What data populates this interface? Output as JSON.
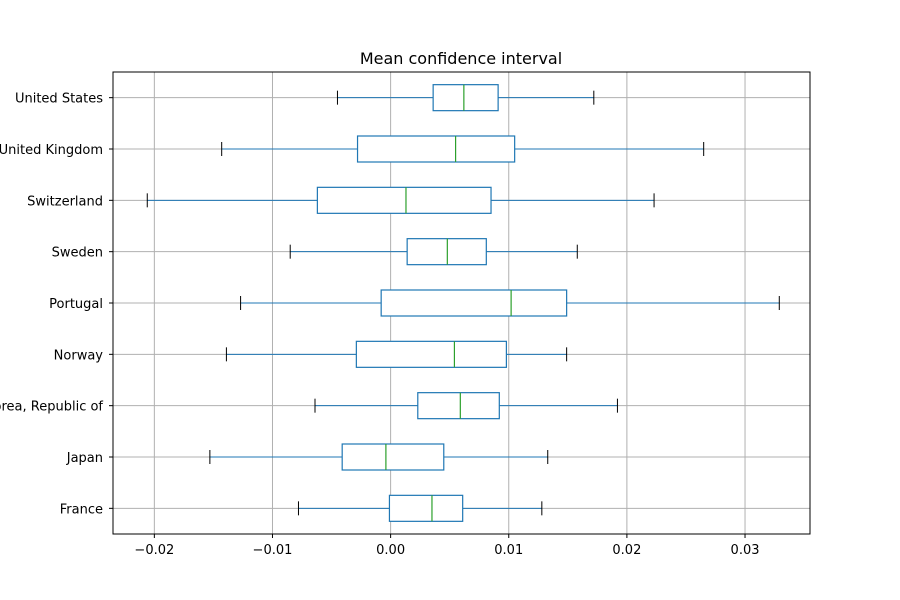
{
  "chart_data": {
    "type": "boxplot",
    "orientation": "horizontal",
    "title": "Mean confidence interval",
    "xlabel": "",
    "ylabel": "",
    "xlim": [
      -0.0235,
      0.0355
    ],
    "xticks": [
      -0.02,
      -0.01,
      0.0,
      0.01,
      0.02,
      0.03
    ],
    "xtick_labels": [
      "−0.02",
      "−0.01",
      "0.00",
      "0.01",
      "0.02",
      "0.03"
    ],
    "grid": true,
    "categories": [
      "United States",
      "United Kingdom",
      "Switzerland",
      "Sweden",
      "Portugal",
      "Norway",
      "Korea, Republic of",
      "Japan",
      "France"
    ],
    "boxes": [
      {
        "label": "United States",
        "whisker_low": -0.0045,
        "q1": 0.0036,
        "median": 0.0062,
        "q3": 0.0091,
        "whisker_high": 0.0172
      },
      {
        "label": "United Kingdom",
        "whisker_low": -0.0143,
        "q1": -0.0028,
        "median": 0.0055,
        "q3": 0.0105,
        "whisker_high": 0.0265
      },
      {
        "label": "Switzerland",
        "whisker_low": -0.0206,
        "q1": -0.0062,
        "median": 0.0013,
        "q3": 0.0085,
        "whisker_high": 0.0223
      },
      {
        "label": "Sweden",
        "whisker_low": -0.0085,
        "q1": 0.0014,
        "median": 0.0048,
        "q3": 0.0081,
        "whisker_high": 0.0158
      },
      {
        "label": "Portugal",
        "whisker_low": -0.0127,
        "q1": -0.0008,
        "median": 0.0102,
        "q3": 0.0149,
        "whisker_high": 0.0329
      },
      {
        "label": "Norway",
        "whisker_low": -0.0139,
        "q1": -0.0029,
        "median": 0.0054,
        "q3": 0.0098,
        "whisker_high": 0.0149
      },
      {
        "label": "Korea, Republic of",
        "whisker_low": -0.0064,
        "q1": 0.0023,
        "median": 0.0059,
        "q3": 0.0092,
        "whisker_high": 0.0192
      },
      {
        "label": "Japan",
        "whisker_low": -0.0153,
        "q1": -0.0041,
        "median": -0.0004,
        "q3": 0.0045,
        "whisker_high": 0.0133
      },
      {
        "label": "France",
        "whisker_low": -0.0078,
        "q1": -0.0001,
        "median": 0.0035,
        "q3": 0.0061,
        "whisker_high": 0.0128
      }
    ],
    "colors": {
      "box": "#1f77b4",
      "median": "#2ca02c",
      "caps": "#000000",
      "grid": "#b0b0b0"
    }
  }
}
